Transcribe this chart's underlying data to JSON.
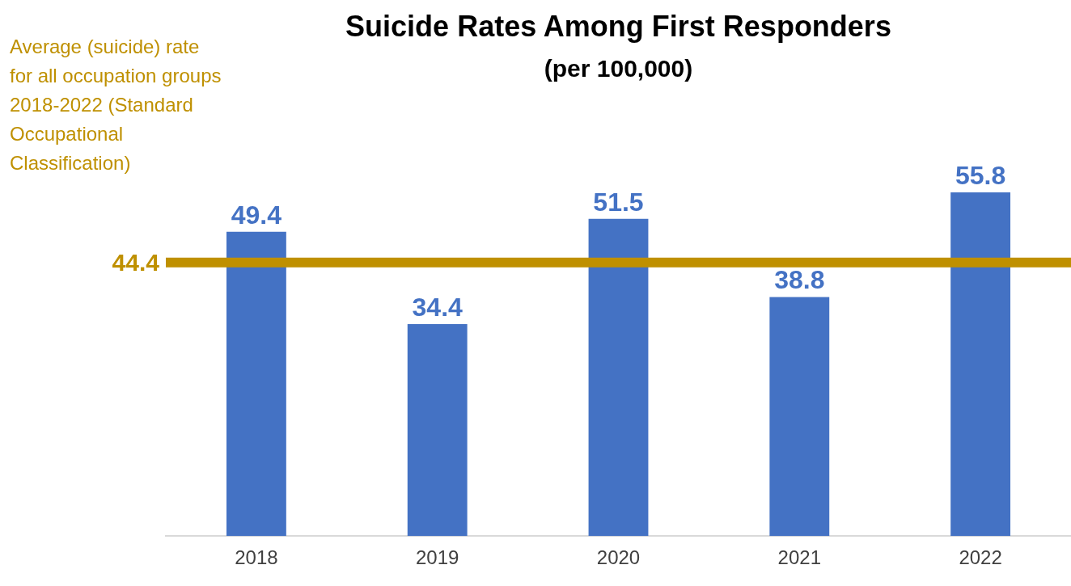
{
  "chart_data": {
    "type": "bar",
    "title": "Suicide Rates Among First Responders",
    "subtitle": "(per 100,000)",
    "categories": [
      "2018",
      "2019",
      "2020",
      "2021",
      "2022"
    ],
    "series": [
      {
        "color": "#4472c4",
        "values": [
          49.4,
          34.4,
          51.5,
          38.8,
          55.8
        ]
      }
    ],
    "data_labels": true,
    "tick_labels": "x",
    "grid": false,
    "legend": false,
    "ref_lines": [
      {
        "axis": "y",
        "value": 44.4,
        "label": "44.4",
        "color": "#bf9000"
      }
    ],
    "annotations": [
      "Average (suicide) rate for all occupation groups 2018-2022 (Standard Occupational Classification)"
    ]
  }
}
